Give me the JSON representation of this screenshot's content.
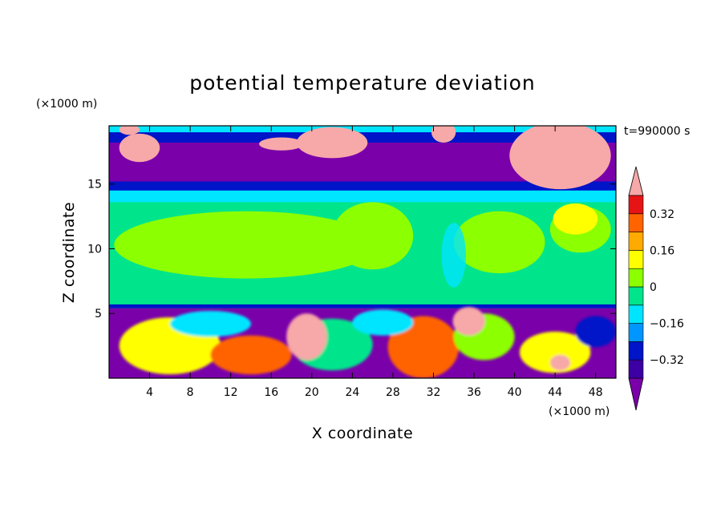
{
  "chart_data": {
    "type": "heatmap",
    "title": "potential temperature deviation",
    "xlabel": "X coordinate",
    "ylabel": "Z coordinate",
    "x_unit": "(×1000 m)",
    "y_unit": "(×1000 m)",
    "time_label": "t=990000 s",
    "xlim": [
      0,
      50
    ],
    "ylim": [
      0,
      19.5
    ],
    "x_ticks": [
      4,
      8,
      12,
      16,
      20,
      24,
      28,
      32,
      36,
      40,
      44,
      48
    ],
    "y_ticks": [
      5,
      10,
      15
    ],
    "colorbar": {
      "levels": [
        -0.4,
        -0.32,
        -0.24,
        -0.16,
        -0.08,
        0,
        0.08,
        0.16,
        0.24,
        0.32,
        0.4
      ],
      "labels": [
        "0.32",
        "0.16",
        "0",
        "−0.16",
        "−0.32"
      ],
      "label_values": [
        0.32,
        0.16,
        0,
        -0.16,
        -0.32
      ],
      "colors": [
        "#7a00aa",
        "#3c00a4",
        "#0014c8",
        "#0096ff",
        "#00e5ff",
        "#00e58c",
        "#8cff00",
        "#ffff00",
        "#ffaa00",
        "#ff6400",
        "#e61414",
        "#f7a8a8"
      ],
      "extend": "both"
    },
    "fields": {
      "deep_purple": "#7a00aa",
      "blue": "#0014c8",
      "cyan": "#00e5ff",
      "green": "#00e58c",
      "lime": "#8cff00",
      "yellow": "#ffff00",
      "pink": "#f7a8a8"
    }
  }
}
